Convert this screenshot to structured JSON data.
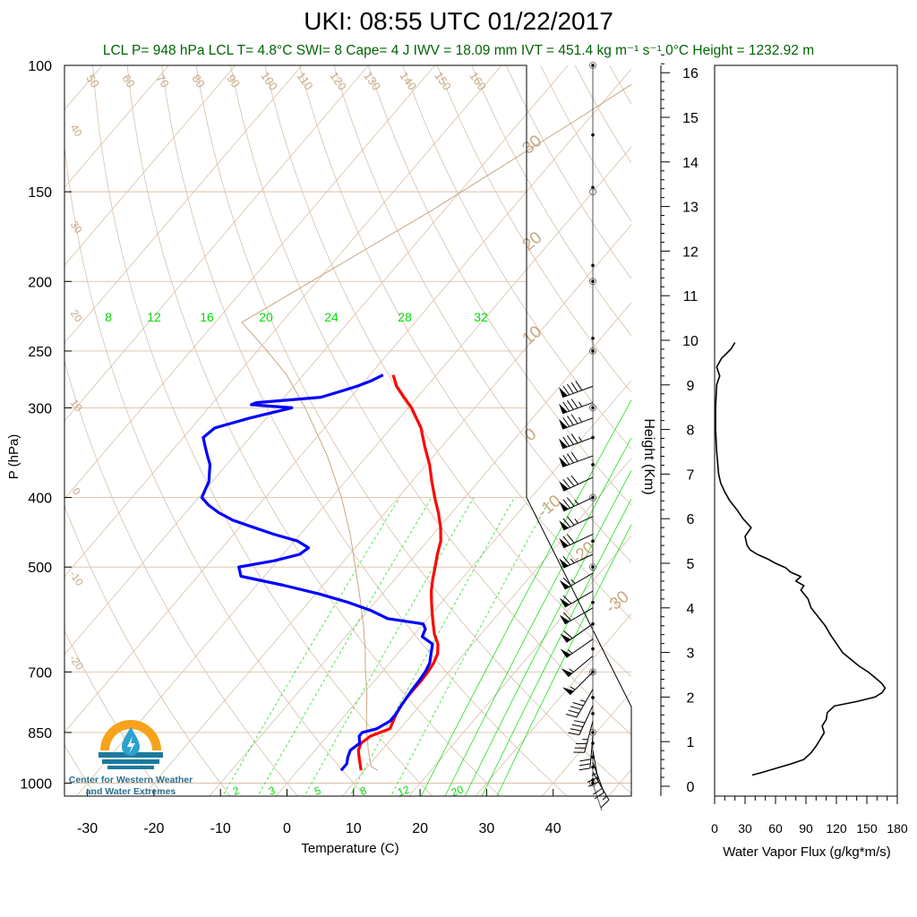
{
  "header": {
    "title": "UKI: 08:55 UTC 01/22/2017",
    "subtitle": "LCL P= 948 hPa  LCL T= 4.8°C  SWI= 8  Cape= 4 J  IWV = 18.09 mm  IVT = 451.4 kg m⁻¹ s⁻¹  0°C Height = 1232.92 m"
  },
  "logo": {
    "line1": "Center for Western Weather",
    "line2": "and Water Extremes",
    "colors": {
      "sun": "#f7a21b",
      "water": "#1b7a9e",
      "drop": "#2aa3d0"
    }
  },
  "colors": {
    "temperature": "#ff0000",
    "dewpoint": "#0000ff",
    "isotherm": "#d8c0a8",
    "adiabat": "#d8c0a8",
    "mixing_ratio": "#00dd00",
    "labels_tan": "#c8a882",
    "parcel": "#c8a882",
    "flux": "#000000"
  },
  "chart_data": [
    {
      "type": "line",
      "name": "skew-t",
      "xlabel": "Temperature (C)",
      "ylabel": "P (hPa)",
      "xlim": [
        -34,
        52
      ],
      "ylim": [
        1050,
        100
      ],
      "y_scale": "log",
      "x_ticks": [
        -30,
        -20,
        -10,
        0,
        10,
        20,
        30,
        40
      ],
      "p_ticks": [
        100,
        150,
        200,
        250,
        300,
        400,
        500,
        700,
        850,
        1000
      ],
      "mixing_ratio_top_labels": [
        "8",
        "12",
        "16",
        "20",
        "24",
        "28",
        "32"
      ],
      "mixing_ratio_bottom_labels": [
        "2",
        "3",
        "5",
        "8",
        "12",
        "20"
      ],
      "adiabat_top_labels": [
        "50",
        "60",
        "70",
        "80",
        "90",
        "100",
        "110",
        "120",
        "130",
        "140",
        "150",
        "160"
      ],
      "isotherm_left_labels": [
        "40",
        "30",
        "20",
        "10",
        "0",
        "-10",
        "-20"
      ],
      "isotherm_right_labels": [
        "30",
        "20",
        "10",
        "0",
        "-10",
        "-20",
        "-30"
      ],
      "series": [
        {
          "name": "Temperature",
          "p": [
            960,
            940,
            920,
            900,
            880,
            860,
            840,
            820,
            800,
            780,
            760,
            740,
            720,
            700,
            680,
            660,
            640,
            620,
            600,
            580,
            560,
            540,
            520,
            500,
            480,
            460,
            440,
            420,
            400,
            380,
            360,
            340,
            320,
            300,
            290,
            280,
            270
          ],
          "t": [
            9.5,
            8.5,
            7.5,
            6.5,
            6.0,
            6.5,
            8.5,
            8.0,
            7.5,
            7.2,
            7.0,
            7.0,
            7.0,
            6.9,
            6.6,
            6.0,
            4.8,
            3.0,
            1.5,
            0.0,
            -1.5,
            -3.0,
            -4.3,
            -5.5,
            -6.8,
            -8.0,
            -9.8,
            -12.0,
            -14.5,
            -17.0,
            -19.5,
            -22.5,
            -25.5,
            -29.5,
            -32.0,
            -34.5,
            -36.5
          ]
        },
        {
          "name": "Dewpoint",
          "p": [
            960,
            940,
            920,
            900,
            880,
            860,
            850,
            840,
            820,
            800,
            780,
            760,
            740,
            720,
            700,
            680,
            660,
            640,
            625,
            610,
            600,
            590,
            575,
            560,
            545,
            530,
            515,
            500,
            490,
            480,
            470,
            460,
            450,
            440,
            430,
            420,
            410,
            400,
            390,
            380,
            370,
            360,
            350,
            340,
            330,
            320,
            310,
            300,
            297,
            295,
            292,
            290,
            285,
            280,
            275,
            270
          ],
          "t": [
            6.5,
            6.5,
            5.8,
            5.3,
            5.8,
            4.8,
            4.8,
            6.5,
            7.5,
            7.5,
            7.2,
            7.0,
            6.8,
            6.7,
            6.5,
            6.0,
            5.0,
            4.0,
            1.5,
            1.0,
            0.0,
            -6.0,
            -9.5,
            -14.0,
            -19.5,
            -26.0,
            -33.5,
            -35.0,
            -30.5,
            -27.5,
            -27.0,
            -29.5,
            -34.0,
            -38.0,
            -42.0,
            -45.0,
            -47.5,
            -49.5,
            -50.0,
            -50.5,
            -51.5,
            -52.5,
            -54.0,
            -55.5,
            -57.0,
            -56.5,
            -52.5,
            -47.5,
            -54.0,
            -53.5,
            -48.0,
            -44.5,
            -42.5,
            -40.5,
            -39.0,
            -38.0
          ]
        },
        {
          "name": "Parcel",
          "p": [
            960,
            948,
            900,
            850,
            800,
            750,
            700,
            650,
            600,
            550,
            500,
            450,
            400,
            350,
            300,
            270,
            250,
            228,
            160,
            120,
            100
          ],
          "t": [
            12.0,
            10.5,
            8.0,
            5.5,
            3.0,
            0.5,
            -2.5,
            -5.5,
            -9.0,
            -13.0,
            -17.5,
            -22.5,
            -28.5,
            -36.0,
            -45.5,
            -52.5,
            -58.5,
            -66.0,
            -52.0,
            -42.0,
            -36.0
          ]
        }
      ],
      "winds": [
        {
          "p": 280,
          "dir": 250,
          "kt": 90
        },
        {
          "p": 295,
          "dir": 250,
          "kt": 85
        },
        {
          "p": 310,
          "dir": 250,
          "kt": 85
        },
        {
          "p": 330,
          "dir": 250,
          "kt": 85
        },
        {
          "p": 350,
          "dir": 250,
          "kt": 80
        },
        {
          "p": 375,
          "dir": 245,
          "kt": 80
        },
        {
          "p": 400,
          "dir": 245,
          "kt": 75
        },
        {
          "p": 425,
          "dir": 245,
          "kt": 75
        },
        {
          "p": 450,
          "dir": 245,
          "kt": 70
        },
        {
          "p": 480,
          "dir": 245,
          "kt": 65
        },
        {
          "p": 510,
          "dir": 240,
          "kt": 65
        },
        {
          "p": 540,
          "dir": 240,
          "kt": 60
        },
        {
          "p": 570,
          "dir": 240,
          "kt": 60
        },
        {
          "p": 600,
          "dir": 235,
          "kt": 60
        },
        {
          "p": 630,
          "dir": 235,
          "kt": 55
        },
        {
          "p": 665,
          "dir": 230,
          "kt": 55
        },
        {
          "p": 700,
          "dir": 225,
          "kt": 55
        },
        {
          "p": 740,
          "dir": 210,
          "kt": 45
        },
        {
          "p": 780,
          "dir": 205,
          "kt": 40
        },
        {
          "p": 820,
          "dir": 195,
          "kt": 35
        },
        {
          "p": 860,
          "dir": 185,
          "kt": 30
        },
        {
          "p": 900,
          "dir": 170,
          "kt": 25
        },
        {
          "p": 935,
          "dir": 160,
          "kt": 20
        },
        {
          "p": 965,
          "dir": 150,
          "kt": 15
        }
      ]
    },
    {
      "type": "line",
      "name": "water-vapor-flux",
      "xlabel": "Water Vapor Flux (g/kg*m/s)",
      "ylabel": "Height (Km)",
      "xlim": [
        0,
        180
      ],
      "ylim": [
        -0.3,
        16.5
      ],
      "x_ticks": [
        0,
        30,
        60,
        90,
        120,
        150,
        180
      ],
      "y_ticks": [
        0,
        1,
        2,
        3,
        4,
        5,
        6,
        7,
        8,
        9,
        10,
        11,
        12,
        13,
        14,
        15,
        16
      ],
      "series": [
        {
          "name": "Water Vapor Flux",
          "height_km": [
            0.25,
            0.3,
            0.4,
            0.5,
            0.6,
            0.75,
            0.9,
            1.05,
            1.2,
            1.35,
            1.5,
            1.65,
            1.8,
            1.9,
            2.0,
            2.1,
            2.2,
            2.3,
            2.4,
            2.55,
            2.7,
            2.85,
            3.0,
            3.2,
            3.4,
            3.6,
            3.8,
            4.0,
            4.2,
            4.4,
            4.5,
            4.6,
            4.7,
            4.8,
            4.9,
            5.0,
            5.1,
            5.2,
            5.3,
            5.4,
            5.6,
            5.8,
            6.0,
            6.2,
            6.4,
            6.6,
            6.8,
            7.0,
            7.5,
            8.0,
            8.5,
            9.0,
            9.2,
            9.4,
            9.6,
            9.8,
            9.95
          ],
          "flux": [
            37,
            45,
            60,
            75,
            88,
            95,
            100,
            104,
            108,
            106,
            110,
            111,
            118,
            140,
            158,
            165,
            168,
            165,
            160,
            152,
            142,
            134,
            126,
            120,
            114,
            109,
            102,
            95,
            92,
            85,
            88,
            80,
            85,
            75,
            70,
            60,
            52,
            42,
            35,
            32,
            30,
            36,
            28,
            22,
            15,
            10,
            6,
            4,
            2,
            1,
            1,
            2,
            5,
            2,
            7,
            16,
            20
          ]
        }
      ]
    }
  ]
}
